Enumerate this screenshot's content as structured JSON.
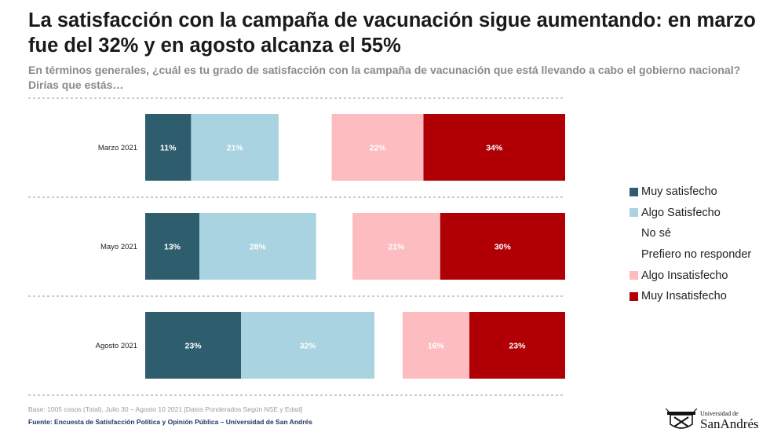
{
  "title": "La satisfacción con la campaña de vacunación sigue aumentando: en marzo fue del 32% y en agosto alcanza el 55%",
  "subtitle": "En términos generales, ¿cuál es tu grado de satisfacción con la campaña de vacunación que está llevando a cabo el gobierno nacional? Dirías que estás…",
  "chart_data": {
    "type": "bar",
    "orientation": "horizontal-stacked-diverging",
    "unit": "%",
    "categories": [
      "Marzo 2021",
      "Mayo 2021",
      "Agosto 2021"
    ],
    "series": [
      {
        "name": "Muy satisfecho",
        "color": "#2e5e6e",
        "label_color": "#ffffff",
        "values": [
          11,
          13,
          23
        ]
      },
      {
        "name": "Algo Satisfecho",
        "color": "#a9d3e0",
        "label_color": "#ffffff",
        "values": [
          21,
          28,
          32
        ]
      },
      {
        "name": "No sé",
        "color": "#ffffff",
        "label_color": "#ffffff",
        "values": [
          null,
          null,
          null
        ]
      },
      {
        "name": "Prefiero no responder",
        "color": "#ffffff",
        "label_color": "#ffffff",
        "values": [
          null,
          null,
          null
        ]
      },
      {
        "name": "Algo Insatisfecho",
        "color": "#fcbcc0",
        "label_color": "#ffffff",
        "values": [
          22,
          21,
          16
        ]
      },
      {
        "name": "Muy Insatisfecho",
        "color": "#b00005",
        "label_color": "#ffffff",
        "values": [
          34,
          30,
          23
        ]
      }
    ],
    "gridlines": "dashed",
    "legend_position": "right"
  },
  "legend": [
    {
      "label": "Muy satisfecho",
      "color": "#2e5e6e",
      "show_swatch": true
    },
    {
      "label": "Algo Satisfecho",
      "color": "#a9d3e0",
      "show_swatch": true
    },
    {
      "label": "No sé",
      "color": "#ffffff",
      "show_swatch": false
    },
    {
      "label": "Prefiero no responder",
      "color": "#ffffff",
      "show_swatch": false
    },
    {
      "label": "Algo Insatisfecho",
      "color": "#fcbcc0",
      "show_swatch": true
    },
    {
      "label": "Muy Insatisfecho",
      "color": "#b00005",
      "show_swatch": true
    }
  ],
  "footer": {
    "base": "Base: 1005 casos (Total), Julio 30 – Agosto 10 2021 [Datos Ponderados Según NSE y Edad]",
    "source": "Fuente: Encuesta de Satisfacción Política y Opinión Pública – Universidad de San Andrés"
  },
  "logo": {
    "line1": "Universidad de",
    "line2": "SanAndrés"
  }
}
